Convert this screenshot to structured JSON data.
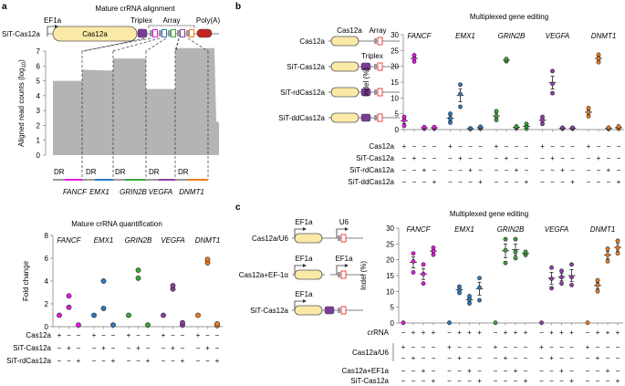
{
  "figure": {
    "panel_labels": [
      "a",
      "b",
      "c"
    ],
    "colors": {
      "FANCF": "#e619e6",
      "EMX1": "#2c79c2",
      "GRIN2B": "#3aa63a",
      "VEGFA": "#8e3fa8",
      "DNMT1": "#f07d1a",
      "cas12a_body": "#fbe9a8",
      "triplex": "#7b3c98",
      "polyA": "#c42323",
      "crRNA_box": "#e8312d",
      "DR": "#9a9a9a",
      "alignment_fill": "#b4b4b4"
    }
  },
  "panel_a": {
    "top": {
      "title": "Mature crRNA alignment",
      "construct": {
        "name": "SiT-Cas12a",
        "promoter": "EF1a",
        "gene": "Cas12a",
        "triplex": "Triplex",
        "array": "Array",
        "polyA": "Poly(A)"
      },
      "dr_label": "DR",
      "gene_labels": [
        "FANCF",
        "EMX1",
        "GRIN2B",
        "VEGFA",
        "DNMT1"
      ]
    },
    "bottom": {
      "title": "Mature crRNA quantification"
    }
  },
  "panel_b": {
    "title": "Multiplexed gene editing",
    "constructs": [
      {
        "name": "Cas12a",
        "labels": [
          "Cas12a",
          "Array"
        ]
      },
      {
        "name": "SiT-Cas12a",
        "labels": [
          "Triplex"
        ]
      },
      {
        "name": "SiT-rdCas12a",
        "labels": []
      },
      {
        "name": "SiT-ddCas12a",
        "labels": []
      }
    ]
  },
  "panel_c": {
    "title": "Multiplexed gene editing",
    "constructs": [
      {
        "name": "Cas12a/U6",
        "labels": [
          "EF1a",
          "U6"
        ]
      },
      {
        "name": "Cas12a+EF-1α",
        "labels": [
          "EF1a",
          "EF1a"
        ]
      },
      {
        "name": "SiT-Cas12a",
        "labels": [
          "EF1a"
        ]
      }
    ]
  },
  "chart_data": [
    {
      "id": "a_alignment",
      "type": "area",
      "title": "Mature crRNA alignment",
      "xlabel": "",
      "ylabel": "Aligned read counts (log10)",
      "ylim": [
        0,
        7
      ],
      "yticks": [
        0,
        1,
        2,
        3,
        4,
        5,
        6,
        7
      ],
      "categories": [
        "FANCF",
        "EMX1",
        "GRIN2B",
        "VEGFA",
        "DNMT1"
      ],
      "values": [
        5.0,
        5.75,
        6.5,
        4.45,
        7.2
      ],
      "tail_value": 2.3
    },
    {
      "id": "a_quantification",
      "type": "scatter",
      "title": "Mature crRNA quantification",
      "ylabel": "Fold change",
      "ylim": [
        0,
        8
      ],
      "yticks": [
        0,
        2,
        4,
        6,
        8
      ],
      "genes": [
        "FANCF",
        "EMX1",
        "GRIN2B",
        "VEGFA",
        "DNMT1"
      ],
      "condition_rows": [
        {
          "label": "Cas12a",
          "signs": [
            "+",
            "−",
            "−"
          ]
        },
        {
          "label": "SiT-Cas12a",
          "signs": [
            "−",
            "+",
            "−"
          ]
        },
        {
          "label": "SiT-rdCas12a",
          "signs": [
            "−",
            "−",
            "+"
          ]
        }
      ],
      "series": [
        {
          "gene": "FANCF",
          "points": [
            [
              1.0
            ],
            [
              1.7,
              2.7
            ],
            [
              0.15
            ]
          ]
        },
        {
          "gene": "EMX1",
          "points": [
            [
              1.0
            ],
            [
              1.6,
              4.0
            ],
            [
              0.15
            ]
          ]
        },
        {
          "gene": "GRIN2B",
          "points": [
            [
              1.0
            ],
            [
              4.25,
              4.95
            ],
            [
              0.15
            ]
          ]
        },
        {
          "gene": "VEGFA",
          "points": [
            [
              1.0
            ],
            [
              3.3,
              3.6
            ],
            [
              0.15,
              0.35
            ]
          ]
        },
        {
          "gene": "DNMT1",
          "points": [
            [
              1.0
            ],
            [
              5.6,
              5.9
            ],
            [
              0.1,
              0.25
            ]
          ]
        }
      ]
    },
    {
      "id": "b_editing",
      "type": "scatter",
      "title": "Multiplexed gene editing",
      "ylabel": "Indel (%)",
      "ylim": [
        0,
        30
      ],
      "yticks": [
        0,
        5,
        10,
        15,
        20,
        25,
        30
      ],
      "genes": [
        "FANCF",
        "EMX1",
        "GRIN2B",
        "VEGFA",
        "DNMT1"
      ],
      "condition_rows": [
        {
          "label": "Cas12a",
          "signs": [
            "+",
            "−",
            "−",
            "−"
          ]
        },
        {
          "label": "SiT-Cas12a",
          "signs": [
            "−",
            "+",
            "−",
            "−"
          ]
        },
        {
          "label": "SiT-rdCas12a",
          "signs": [
            "−",
            "−",
            "+",
            "−"
          ]
        },
        {
          "label": "SiT-ddCas12a",
          "signs": [
            "−",
            "−",
            "−",
            "+"
          ]
        }
      ],
      "series": [
        {
          "gene": "FANCF",
          "points": [
            [
              1.2,
              3.0,
              4.0
            ],
            [
              21.5,
              22.5,
              23.5
            ],
            [
              0.3,
              0.6,
              0.8
            ],
            [
              0.3,
              0.6,
              0.8
            ]
          ]
        },
        {
          "gene": "EMX1",
          "points": [
            [
              2.2,
              3.5,
              5.0
            ],
            [
              7.2,
              11.2,
              14.2
            ],
            [
              0.2,
              0.3,
              0.4
            ],
            [
              0.3,
              0.6,
              0.9
            ]
          ]
        },
        {
          "gene": "GRIN2B",
          "points": [
            [
              3.0,
              4.2,
              5.8
            ],
            [
              21.6,
              22.0,
              22.3
            ],
            [
              0.4,
              0.7,
              1.0
            ],
            [
              0.3,
              1.0,
              1.8
            ]
          ]
        },
        {
          "gene": "VEGFA",
          "points": [
            [
              1.8,
              3.0,
              4.0
            ],
            [
              11.5,
              14.5,
              18.5
            ],
            [
              0.3,
              0.5,
              0.6
            ],
            [
              0.3,
              0.5,
              0.6
            ]
          ]
        },
        {
          "gene": "DNMT1",
          "points": [
            [
              4.2,
              5.5,
              6.8
            ],
            [
              21.3,
              22.5,
              23.7
            ],
            [
              0.2,
              0.4,
              0.6
            ],
            [
              0.3,
              0.6,
              1.0
            ]
          ]
        }
      ]
    },
    {
      "id": "c_editing",
      "type": "scatter",
      "title": "Multiplexed gene editing",
      "ylabel": "Indel (%)",
      "ylim": [
        0,
        30
      ],
      "yticks": [
        0,
        5,
        10,
        15,
        20,
        25,
        30
      ],
      "genes": [
        "FANCF",
        "EMX1",
        "GRIN2B",
        "VEGFA",
        "DNMT1"
      ],
      "condition_rows": [
        {
          "label": "crRNA",
          "signs": [
            "−",
            "+",
            "+",
            "+"
          ]
        },
        {
          "label": "Cas12a/U6",
          "signs": [
            "+",
            "−",
            "−",
            "−"
          ]
        },
        {
          "label": "",
          "signs": [
            "−",
            "+",
            "−",
            "−"
          ]
        },
        {
          "label": "Cas12a+EF1a",
          "signs": [
            "−",
            "−",
            "+",
            "−"
          ]
        },
        {
          "label": "SiT-Cas12a",
          "signs": [
            "−",
            "−",
            "−",
            "+"
          ]
        }
      ],
      "series": [
        {
          "gene": "FANCF",
          "points": [
            [
              0.1
            ],
            [
              16.0,
              19.5,
              22.0
            ],
            [
              12.5,
              15.5,
              18.5
            ],
            [
              21.6,
              22.8,
              23.8
            ]
          ]
        },
        {
          "gene": "EMX1",
          "points": [
            [
              0.1
            ],
            [
              9.5,
              10.5,
              11.5
            ],
            [
              6.2,
              7.5,
              8.5
            ],
            [
              7.2,
              11.2,
              14.2
            ]
          ]
        },
        {
          "gene": "GRIN2B",
          "points": [
            [
              0.1
            ],
            [
              19.0,
              23.0,
              26.5
            ],
            [
              20.5,
              22.5,
              26.5
            ],
            [
              21.5,
              22.0,
              22.5
            ]
          ]
        },
        {
          "gene": "VEGFA",
          "points": [
            [
              0.1
            ],
            [
              11.0,
              14.0,
              17.5
            ],
            [
              12.5,
              14.5,
              16.5
            ],
            [
              12.0,
              14.5,
              18.5
            ]
          ]
        },
        {
          "gene": "DNMT1",
          "points": [
            [
              0.1
            ],
            [
              10.0,
              12.0,
              13.5
            ],
            [
              19.5,
              21.5,
              23.5
            ],
            [
              22.0,
              23.8,
              26.0
            ]
          ]
        }
      ]
    }
  ]
}
